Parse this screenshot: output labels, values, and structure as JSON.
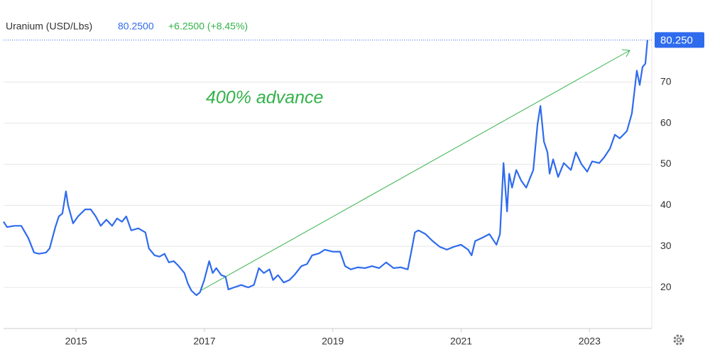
{
  "chart_data": {
    "type": "line",
    "title": "Uranium (USD/Lbs)",
    "price": "80.2500",
    "change": "+6.2500 (+8.45%)",
    "price_tag": "80.250",
    "annotation": "400% advance",
    "xlim": [
      2013.87,
      2023.97
    ],
    "xticks": [
      2015,
      2017,
      2019,
      2021,
      2023
    ],
    "ylim": [
      10,
      90
    ],
    "yticks": [
      20,
      30,
      40,
      50,
      60,
      70
    ],
    "grid": true,
    "series": [
      {
        "name": "Uranium (USD/Lbs)",
        "color": "#2f6bed",
        "x": [
          2013.87,
          2013.925,
          2014.036,
          2014.146,
          2014.257,
          2014.345,
          2014.422,
          2014.533,
          2014.588,
          2014.677,
          2014.732,
          2014.787,
          2014.842,
          2014.876,
          2014.953,
          2015.03,
          2015.141,
          2015.229,
          2015.306,
          2015.384,
          2015.472,
          2015.561,
          2015.638,
          2015.715,
          2015.782,
          2015.859,
          2015.969,
          2016.08,
          2016.135,
          2016.224,
          2016.301,
          2016.378,
          2016.445,
          2016.522,
          2016.599,
          2016.688,
          2016.743,
          2016.798,
          2016.875,
          2016.93,
          2016.997,
          2017.074,
          2017.129,
          2017.185,
          2017.262,
          2017.329,
          2017.373,
          2017.461,
          2017.572,
          2017.682,
          2017.771,
          2017.848,
          2017.925,
          2018.014,
          2018.069,
          2018.146,
          2018.235,
          2018.323,
          2018.4,
          2018.511,
          2018.599,
          2018.677,
          2018.787,
          2018.876,
          2019.003,
          2019.114,
          2019.191,
          2019.279,
          2019.39,
          2019.5,
          2019.611,
          2019.721,
          2019.832,
          2019.947,
          2020.058,
          2020.168,
          2020.223,
          2020.279,
          2020.334,
          2020.444,
          2020.555,
          2020.666,
          2020.776,
          2020.887,
          2020.997,
          2021.108,
          2021.163,
          2021.218,
          2021.329,
          2021.439,
          2021.55,
          2021.605,
          2021.66,
          2021.715,
          2021.748,
          2021.793,
          2021.859,
          2021.936,
          2022.014,
          2022.08,
          2022.124,
          2022.19,
          2022.235,
          2022.29,
          2022.345,
          2022.378,
          2022.433,
          2022.511,
          2022.599,
          2022.71,
          2022.787,
          2022.875,
          2022.964,
          2023.041,
          2023.152,
          2023.229,
          2023.318,
          2023.395,
          2023.472,
          2023.583,
          2023.66,
          2023.737,
          2023.782,
          2023.826,
          2023.87,
          2023.903
        ],
        "values": [
          36,
          34.7,
          35,
          35,
          32,
          28.5,
          28.2,
          28.5,
          29.5,
          34.7,
          37.3,
          38,
          43.4,
          40,
          35.6,
          37.3,
          39,
          39,
          37.3,
          35,
          36.5,
          35,
          36.8,
          36,
          37.3,
          33.9,
          34.4,
          33.4,
          29.5,
          27.8,
          27.5,
          28.2,
          26.1,
          26.4,
          25.2,
          23.5,
          20.9,
          19.2,
          18.1,
          18.8,
          21.8,
          26.4,
          23.5,
          24.7,
          23,
          22.6,
          19.5,
          20,
          20.6,
          20,
          20.6,
          24.7,
          23.5,
          24.4,
          21.8,
          23,
          21.2,
          21.8,
          23,
          25.2,
          25.7,
          27.8,
          28.3,
          29.2,
          28.7,
          28.7,
          25.2,
          24.4,
          24.9,
          24.7,
          25.2,
          24.7,
          26.1,
          24.7,
          24.9,
          24.4,
          28.7,
          33.4,
          33.9,
          33,
          31.3,
          29.9,
          29.2,
          29.9,
          30.4,
          29.2,
          27.8,
          31.3,
          32.1,
          33,
          30.4,
          33,
          50.3,
          38.5,
          47.7,
          44.3,
          48.6,
          46,
          44.3,
          46.9,
          48.6,
          59.8,
          64.2,
          55.5,
          52.9,
          47.7,
          51.2,
          46.9,
          50.3,
          48.6,
          52.9,
          50,
          48.2,
          50.7,
          50.3,
          51.7,
          53.8,
          57.2,
          56.3,
          58.1,
          62.4,
          72.8,
          69.3,
          73.7,
          74.5,
          80.25
        ]
      }
    ]
  }
}
